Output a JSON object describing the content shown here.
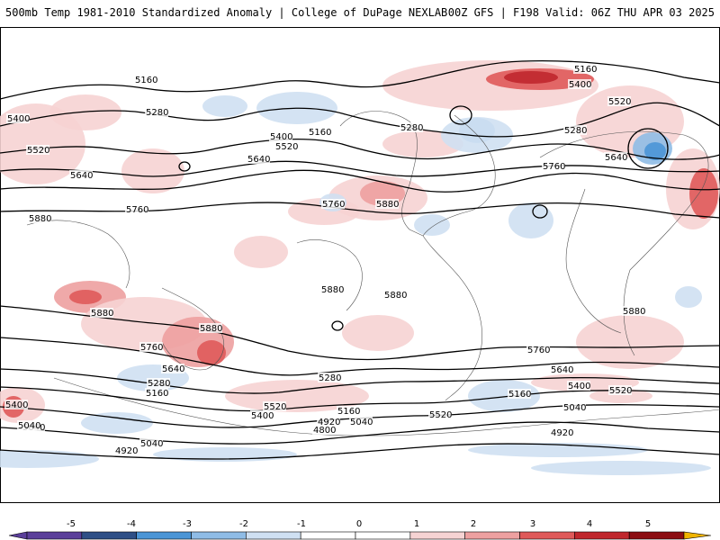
{
  "header": {
    "title": "500mb Temp 1981-2010 Standardized Anomaly | College of DuPage NEXLAB",
    "model_info": "00Z GFS | F198 Valid: 06Z THU APR 03 2025"
  },
  "colors": {
    "neg_5": "#5b3f9a",
    "neg_4": "#2e4f86",
    "neg_3": "#4b95d6",
    "neg_2": "#8fbce6",
    "neg_1": "#cfe0f2",
    "zero": "#ffffff",
    "pos_1": "#f6d3d3",
    "pos_2": "#eda0a0",
    "pos_3": "#df5a5a",
    "pos_4": "#c0272d",
    "pos_5": "#8c0d12",
    "pos_6": "#f0b400"
  },
  "colorbar": {
    "ticks": [
      "-5",
      "-4",
      "-3",
      "-2",
      "-1",
      "0",
      "1",
      "2",
      "3",
      "4",
      "5"
    ]
  },
  "contour_labels": [
    "5160",
    "5280",
    "5400",
    "5520",
    "5640",
    "5760",
    "5880",
    "5040",
    "4920",
    "4800",
    "5160",
    "5280",
    "5400",
    "5520",
    "5640",
    "5760",
    "5880",
    "5160",
    "5400",
    "5520",
    "5280",
    "5640",
    "5760",
    "5880",
    "5760",
    "5640",
    "5520",
    "5400",
    "5280",
    "5160",
    "5040",
    "5520",
    "5160",
    "5040",
    "4920",
    "5040",
    "4920",
    "5280",
    "5160",
    "5400",
    "5520",
    "5640",
    "5760",
    "5880",
    "5880",
    "5880",
    "5880",
    "5400",
    "5040"
  ]
}
